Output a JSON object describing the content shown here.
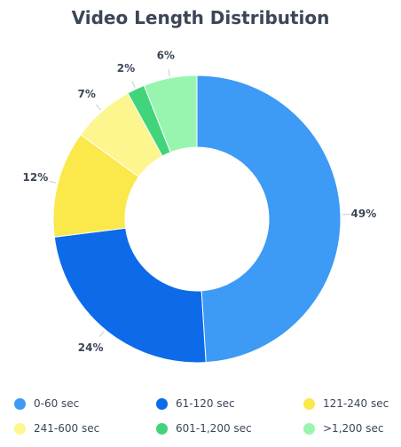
{
  "chart_data": {
    "type": "pie",
    "title": "Video Length Distribution",
    "categories": [
      "0-60 sec",
      "61-120 sec",
      "121-240 sec",
      "241-600 sec",
      "601-1,200 sec",
      ">1,200 sec"
    ],
    "values": [
      49,
      24,
      12,
      7,
      2,
      6
    ],
    "labels": [
      "49%",
      "24%",
      "12%",
      "7%",
      "2%",
      "6%"
    ],
    "colors": [
      "#3d9af5",
      "#0d6ae8",
      "#fbe84a",
      "#fdf58d",
      "#41d47a",
      "#98f5b0"
    ],
    "donut": true,
    "legend_position": "bottom"
  }
}
